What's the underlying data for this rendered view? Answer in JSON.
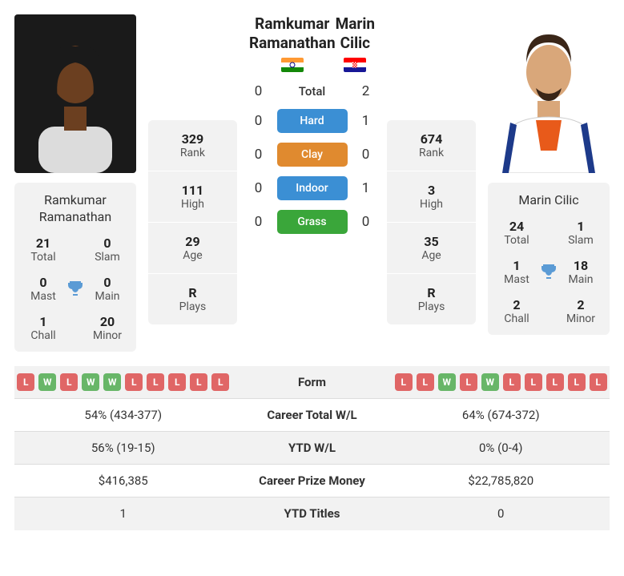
{
  "colors": {
    "win": "#68b668",
    "loss": "#e06666",
    "hard": "#3b8fd4",
    "clay": "#e08a2f",
    "indoor": "#3b8fd4",
    "grass": "#3aa63a",
    "trophy": "#5b9bd5"
  },
  "p1": {
    "name": "Ramkumar Ramanathan",
    "flag": "in",
    "photo_bg": "#2a2a2a",
    "skin": "#7a4a2a",
    "shirt": "#e8e8e8",
    "titles": {
      "total": {
        "v": "21",
        "l": "Total"
      },
      "slam": {
        "v": "0",
        "l": "Slam"
      },
      "mast": {
        "v": "0",
        "l": "Mast"
      },
      "main": {
        "v": "0",
        "l": "Main"
      },
      "chall": {
        "v": "1",
        "l": "Chall"
      },
      "minor": {
        "v": "20",
        "l": "Minor"
      }
    },
    "stats": {
      "rank": {
        "v": "329",
        "l": "Rank"
      },
      "high": {
        "v": "111",
        "l": "High"
      },
      "age": {
        "v": "29",
        "l": "Age"
      },
      "plays": {
        "v": "R",
        "l": "Plays"
      }
    }
  },
  "p2": {
    "name": "Marin Cilic",
    "flag": "hr",
    "photo_bg": "#ffffff",
    "skin": "#d9a77a",
    "shirt": "#ffffff",
    "shirt2": "#1d3a8a",
    "tee": "#e85a1a",
    "titles": {
      "total": {
        "v": "24",
        "l": "Total"
      },
      "slam": {
        "v": "1",
        "l": "Slam"
      },
      "mast": {
        "v": "1",
        "l": "Mast"
      },
      "main": {
        "v": "18",
        "l": "Main"
      },
      "chall": {
        "v": "2",
        "l": "Chall"
      },
      "minor": {
        "v": "2",
        "l": "Minor"
      }
    },
    "stats": {
      "rank": {
        "v": "674",
        "l": "Rank"
      },
      "high": {
        "v": "3",
        "l": "High"
      },
      "age": {
        "v": "35",
        "l": "Age"
      },
      "plays": {
        "v": "R",
        "l": "Plays"
      }
    }
  },
  "h2h": {
    "total": {
      "l": "Total",
      "a": "0",
      "b": "2"
    },
    "hard": {
      "l": "Hard",
      "a": "0",
      "b": "1",
      "color": "#3b8fd4"
    },
    "clay": {
      "l": "Clay",
      "a": "0",
      "b": "0",
      "color": "#e08a2f"
    },
    "indoor": {
      "l": "Indoor",
      "a": "0",
      "b": "1",
      "color": "#3b8fd4"
    },
    "grass": {
      "l": "Grass",
      "a": "0",
      "b": "0",
      "color": "#3aa63a"
    }
  },
  "form": {
    "label": "Form",
    "p1": [
      "L",
      "W",
      "L",
      "W",
      "W",
      "L",
      "L",
      "L",
      "L",
      "L"
    ],
    "p2": [
      "L",
      "L",
      "W",
      "L",
      "W",
      "L",
      "L",
      "L",
      "L",
      "L"
    ]
  },
  "comp": {
    "career_wl": {
      "l": "Career Total W/L",
      "a": "54% (434-377)",
      "b": "64% (674-372)",
      "aw": 54,
      "bw": 64
    },
    "ytd_wl": {
      "l": "YTD W/L",
      "a": "56% (19-15)",
      "b": "0% (0-4)",
      "aw": 56,
      "bw": 0
    },
    "prize": {
      "l": "Career Prize Money",
      "a": "$416,385",
      "b": "$22,785,820",
      "aw": 2,
      "bw": 98
    },
    "ytd_titles": {
      "l": "YTD Titles",
      "a": "1",
      "b": "0",
      "aw": 100,
      "bw": 0
    }
  }
}
